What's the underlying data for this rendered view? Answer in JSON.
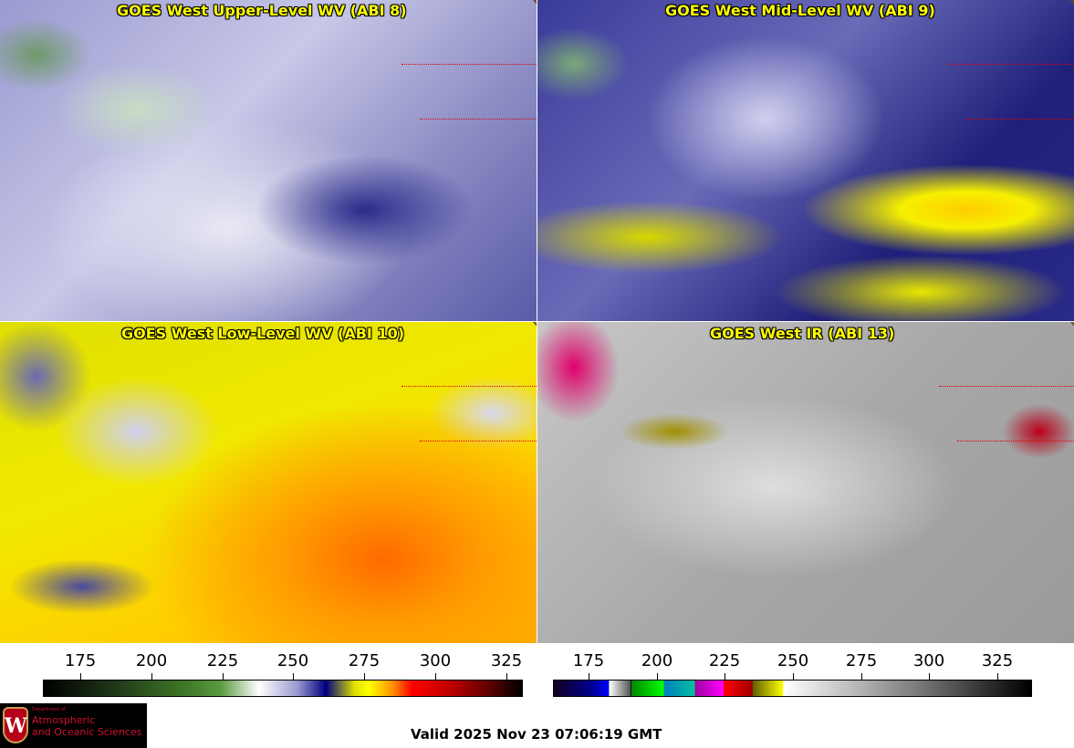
{
  "panels": [
    {
      "title": "GOES West Upper-Level WV (ABI 8)"
    },
    {
      "title": "GOES West Mid-Level WV (ABI 9)"
    },
    {
      "title": "GOES West Low-Level WV (ABI 10)"
    },
    {
      "title": "GOES West IR (ABI 13)"
    }
  ],
  "colorbars": [
    {
      "name": "water-vapor",
      "range": [
        162,
        330
      ],
      "ticks": [
        "175",
        "200",
        "225",
        "250",
        "275",
        "300",
        "325"
      ],
      "tick_values": [
        175,
        200,
        225,
        250,
        275,
        300,
        325
      ]
    },
    {
      "name": "infrared",
      "range": [
        162,
        337
      ],
      "ticks": [
        "175",
        "200",
        "225",
        "250",
        "275",
        "300",
        "325"
      ],
      "tick_values": [
        175,
        200,
        225,
        250,
        275,
        300,
        325
      ]
    }
  ],
  "logo": {
    "dept": "Department of",
    "line1": "Atmospheric",
    "line2": "and Oceanic Sciences",
    "crest_letter": "W"
  },
  "valid_time": "Valid 2025 Nov 23 07:06:19 GMT",
  "colors": {
    "title": "#ffff00",
    "coast": "#6b4a1a",
    "state_borders": "#e00000"
  }
}
